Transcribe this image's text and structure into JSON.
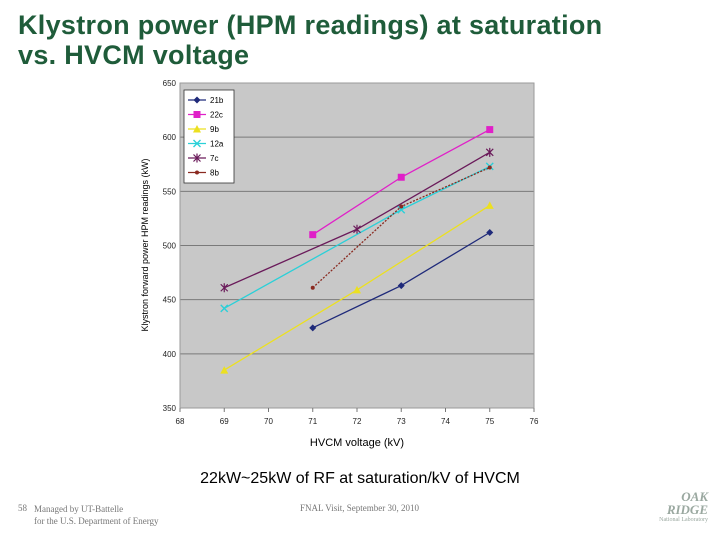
{
  "slide": {
    "title_line1": "Klystron power (HPM readings) at saturation",
    "title_line2": "vs. HVCM voltage",
    "caption": "22kW~25kW of RF at saturation/kV of HVCM",
    "slide_number": "58",
    "managed_line1": "Managed by UT-Battelle",
    "managed_line2": "for the U.S. Department of Energy",
    "event": "FNAL Visit, September 30, 2010",
    "logo_line1": "OAK",
    "logo_line2": "RIDGE",
    "logo_line3": "National Laboratory"
  },
  "chart_data": {
    "type": "line",
    "xlabel": "HVCM voltage (kV)",
    "ylabel": "Klystron forward power HPM readings (kW)",
    "xlim": [
      68,
      76
    ],
    "ylim": [
      350,
      650
    ],
    "xticks": [
      68,
      69,
      70,
      71,
      72,
      73,
      74,
      75,
      76
    ],
    "yticks": [
      350,
      400,
      450,
      500,
      550,
      600,
      650
    ],
    "grid": "horizontal",
    "legend_position": "top-left",
    "series": [
      {
        "name": "21b",
        "color": "#1f2a7a",
        "marker": "diamond",
        "x": [
          71,
          73,
          75
        ],
        "y": [
          424,
          463,
          512
        ]
      },
      {
        "name": "22c",
        "color": "#e020c8",
        "marker": "square",
        "x": [
          71,
          73,
          75
        ],
        "y": [
          510,
          563,
          607
        ]
      },
      {
        "name": "9b",
        "color": "#ece020",
        "marker": "triangle",
        "x": [
          69,
          72,
          75
        ],
        "y": [
          385,
          459,
          537
        ]
      },
      {
        "name": "12a",
        "color": "#2ad0d8",
        "marker": "x",
        "x": [
          69,
          73,
          75
        ],
        "y": [
          442,
          533,
          573
        ]
      },
      {
        "name": "7c",
        "color": "#6a1a5a",
        "marker": "star",
        "x": [
          69,
          72,
          75
        ],
        "y": [
          461,
          515,
          586
        ]
      },
      {
        "name": "8b",
        "color": "#8a2a20",
        "marker": "dot",
        "x": [
          71,
          73,
          75
        ],
        "y": [
          461,
          536,
          572
        ]
      }
    ]
  }
}
